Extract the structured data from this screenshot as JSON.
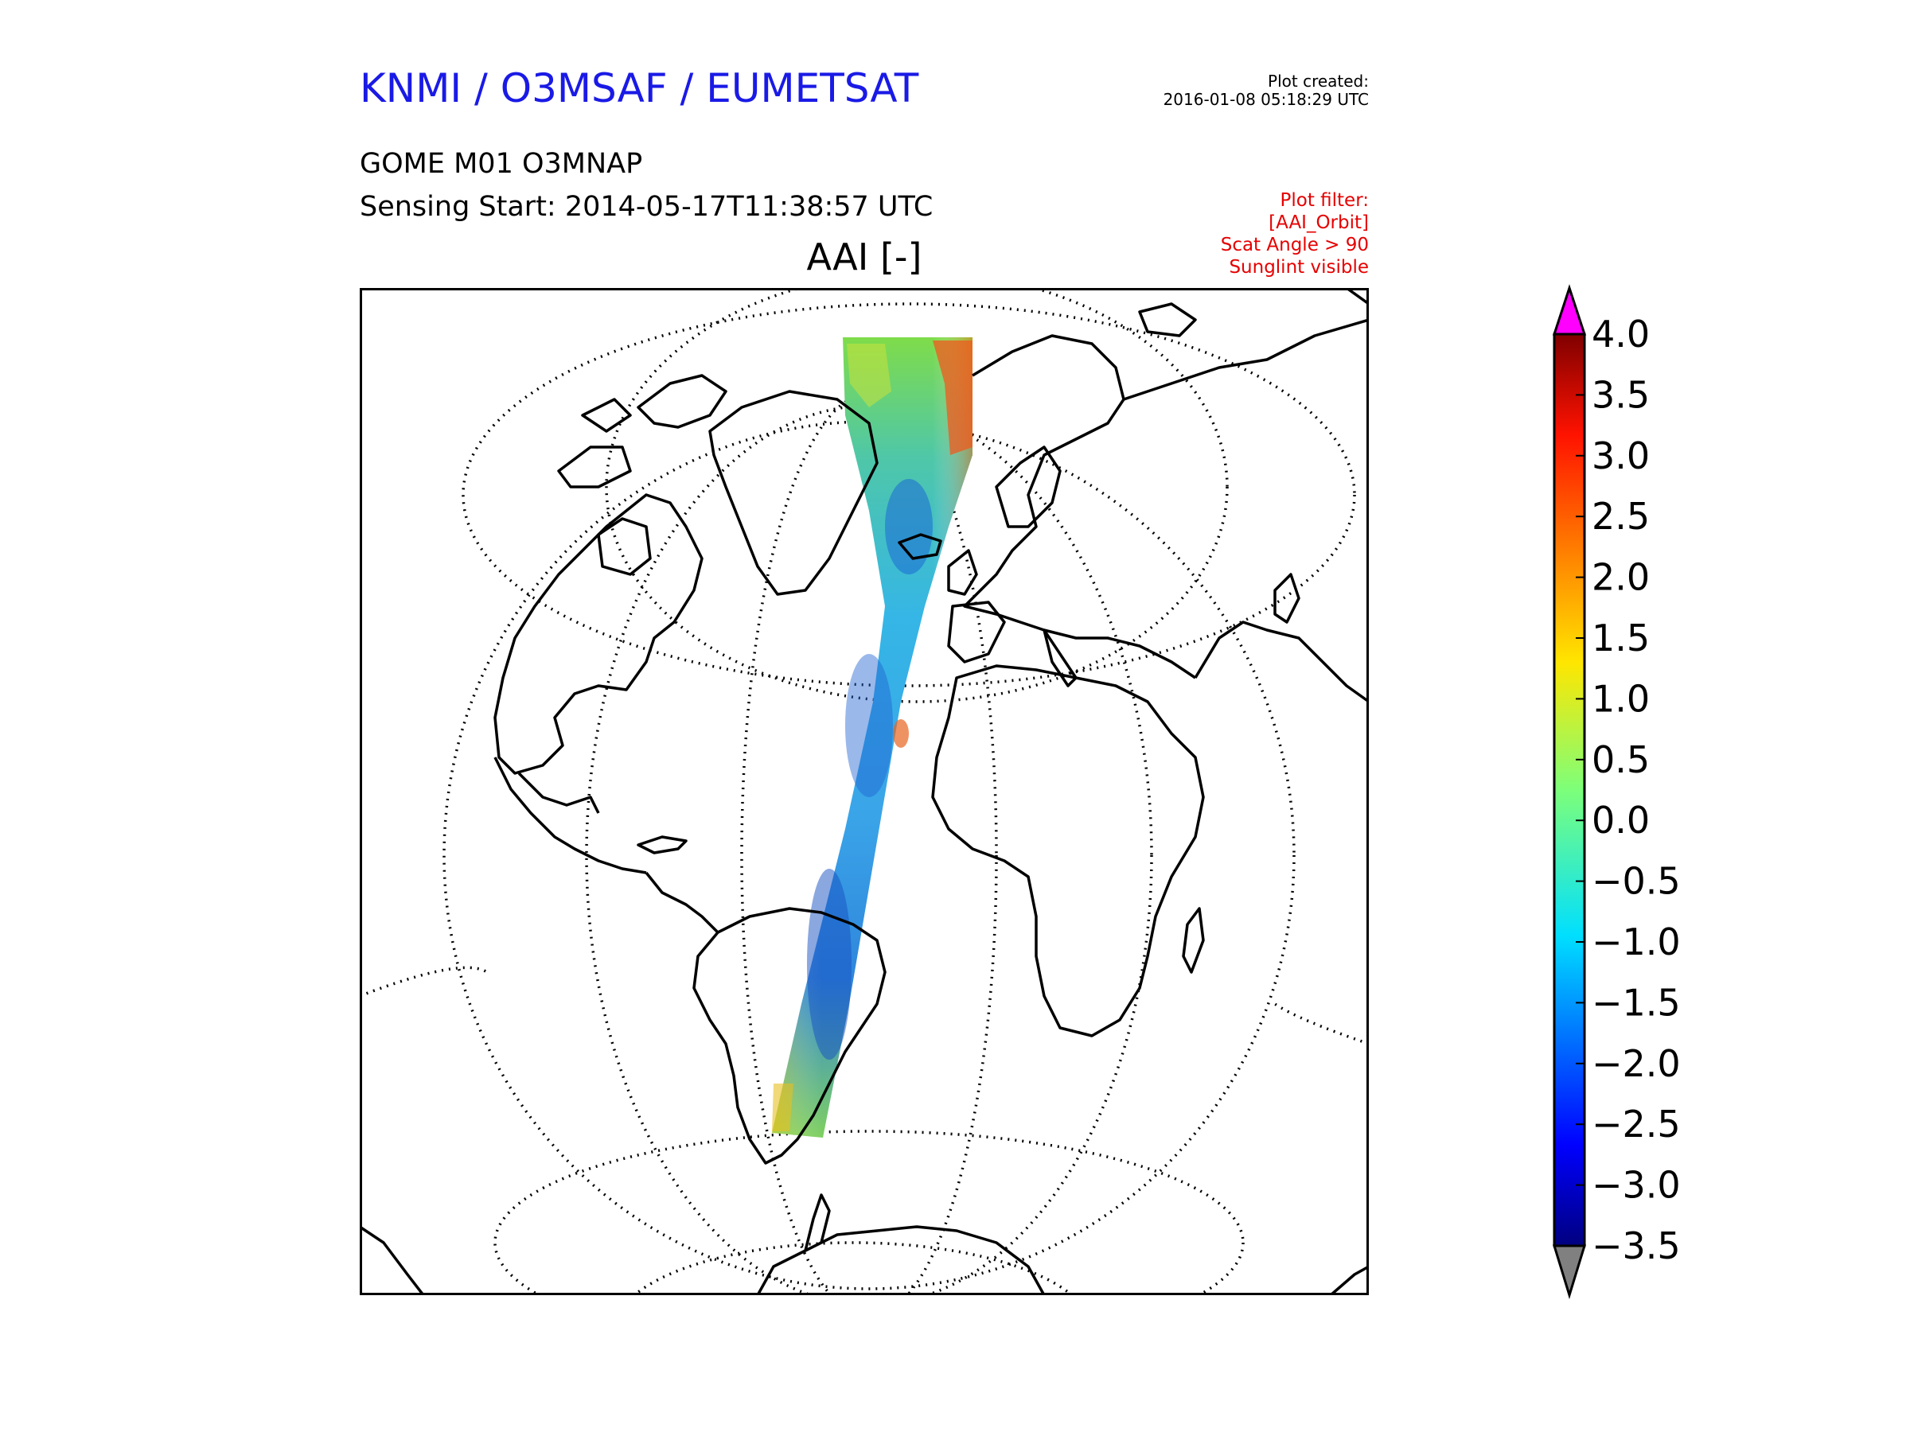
{
  "header": {
    "title": "KNMI / O3MSAF / EUMETSAT",
    "plot_created_label": "Plot created:",
    "plot_created_time": "2016-01-08 05:18:29 UTC"
  },
  "product": {
    "name": "GOME M01 O3MNAP",
    "sensing_start": "Sensing Start: 2014-05-17T11:38:57 UTC"
  },
  "filter": {
    "label": "Plot filter:",
    "lines": [
      "[AAI_Orbit]",
      "Scat Angle > 90",
      "Sunglint visible"
    ]
  },
  "map": {
    "title": "AAI [-]",
    "projection": "orthographic",
    "graticule": "dotted",
    "coastline_color": "#000000"
  },
  "colorbar": {
    "colormap": "jet",
    "min": -3.5,
    "max": 4.0,
    "extend": "both",
    "over_color": "#ff00ff",
    "under_color": "#808080",
    "ticks": [
      "4.0",
      "3.5",
      "3.0",
      "2.5",
      "2.0",
      "1.5",
      "1.0",
      "0.5",
      "0.0",
      "−0.5",
      "−1.0",
      "−1.5",
      "−2.0",
      "−2.5",
      "−3.0",
      "−3.5"
    ]
  }
}
